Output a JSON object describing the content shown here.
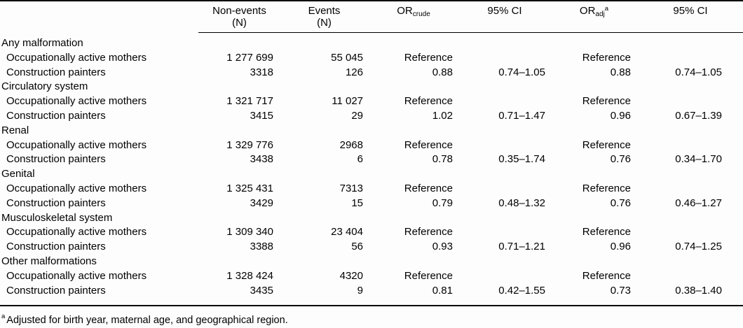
{
  "page": {
    "background": "#fdfdfd",
    "text_color": "#000000",
    "rule_color": "#000000"
  },
  "table": {
    "header": {
      "row_label": "",
      "non_events": {
        "line1": "Non-events",
        "line2": "(N)"
      },
      "events": {
        "line1": "Events",
        "line2": "(N)"
      },
      "or_crude": {
        "base": "OR",
        "sub": "crude"
      },
      "ci_crude": "95% CI",
      "or_adj": {
        "base": "OR",
        "sub": "adj",
        "sup": "a"
      },
      "ci_adj": "95% CI"
    },
    "sections": [
      {
        "title": "Any malformation",
        "rows": [
          {
            "label": "Occupationally active mothers",
            "non_events": "1 277 699",
            "events": "55 045",
            "or_crude": "Reference",
            "ci_crude": "",
            "or_adj": "Reference",
            "ci_adj": ""
          },
          {
            "label": "Construction painters",
            "non_events": "3318",
            "events": "126",
            "or_crude": "0.88",
            "ci_crude": "0.74–1.05",
            "or_adj": "0.88",
            "ci_adj": "0.74–1.05"
          }
        ]
      },
      {
        "title": "Circulatory system",
        "rows": [
          {
            "label": "Occupationally active mothers",
            "non_events": "1 321 717",
            "events": "11 027",
            "or_crude": "Reference",
            "ci_crude": "",
            "or_adj": "Reference",
            "ci_adj": ""
          },
          {
            "label": "Construction painters",
            "non_events": "3415",
            "events": "29",
            "or_crude": "1.02",
            "ci_crude": "0.71–1.47",
            "or_adj": "0.96",
            "ci_adj": "0.67–1.39"
          }
        ]
      },
      {
        "title": "Renal",
        "rows": [
          {
            "label": "Occupationally active mothers",
            "non_events": "1 329 776",
            "events": "2968",
            "or_crude": "Reference",
            "ci_crude": "",
            "or_adj": "Reference",
            "ci_adj": ""
          },
          {
            "label": "Construction painters",
            "non_events": "3438",
            "events": "6",
            "or_crude": "0.78",
            "ci_crude": "0.35–1.74",
            "or_adj": "0.76",
            "ci_adj": "0.34–1.70"
          }
        ]
      },
      {
        "title": "Genital",
        "rows": [
          {
            "label": "Occupationally active mothers",
            "non_events": "1 325 431",
            "events": "7313",
            "or_crude": "Reference",
            "ci_crude": "",
            "or_adj": "Reference",
            "ci_adj": ""
          },
          {
            "label": "Construction painters",
            "non_events": "3429",
            "events": "15",
            "or_crude": "0.79",
            "ci_crude": "0.48–1.32",
            "or_adj": "0.76",
            "ci_adj": "0.46–1.27"
          }
        ]
      },
      {
        "title": "Musculoskeletal system",
        "rows": [
          {
            "label": "Occupationally active mothers",
            "non_events": "1 309 340",
            "events": "23 404",
            "or_crude": "Reference",
            "ci_crude": "",
            "or_adj": "Reference",
            "ci_adj": ""
          },
          {
            "label": "Construction painters",
            "non_events": "3388",
            "events": "56",
            "or_crude": "0.93",
            "ci_crude": "0.71–1.21",
            "or_adj": "0.96",
            "ci_adj": "0.74–1.25"
          }
        ]
      },
      {
        "title": "Other malformations",
        "rows": [
          {
            "label": "Occupationally active mothers",
            "non_events": "1 328 424",
            "events": "4320",
            "or_crude": "Reference",
            "ci_crude": "",
            "or_adj": "Reference",
            "ci_adj": ""
          },
          {
            "label": "Construction painters",
            "non_events": "3435",
            "events": "9",
            "or_crude": "0.81",
            "ci_crude": "0.42–1.55",
            "or_adj": "0.73",
            "ci_adj": "0.38–1.40"
          }
        ]
      }
    ],
    "footnote": {
      "marker": "a",
      "text": "Adjusted for birth year, maternal age, and geographical region."
    }
  }
}
